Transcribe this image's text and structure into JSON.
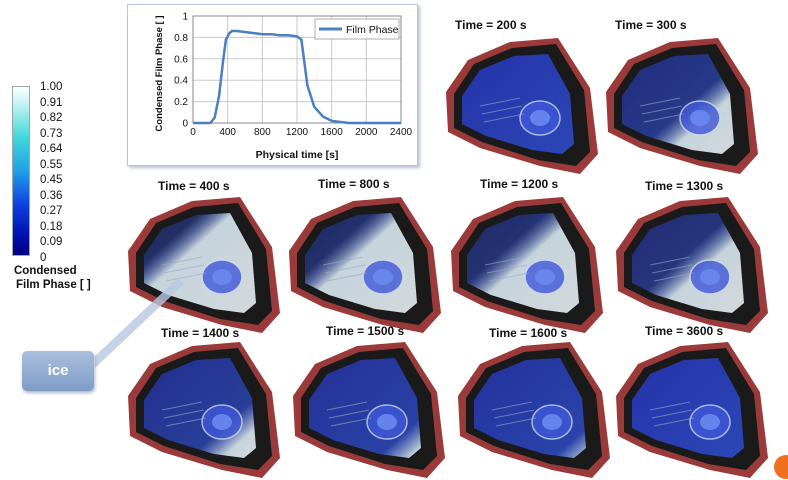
{
  "colorbar": {
    "ticks": [
      "1.00",
      "0.91",
      "0.82",
      "0.73",
      "0.64",
      "0.55",
      "0.45",
      "0.36",
      "0.27",
      "0.18",
      "0.09",
      "0"
    ],
    "title_line1": "Condensed",
    "title_line2": "Film Phase [ ]"
  },
  "chart_data": {
    "type": "line",
    "xlabel": "Physical time [s]",
    "ylabel": "Condensed Film Phase [ ]",
    "xlim": [
      0,
      2400
    ],
    "ylim": [
      0,
      1
    ],
    "xticks": [
      "0",
      "400",
      "800",
      "1200",
      "1600",
      "2000",
      "2400"
    ],
    "yticks": [
      "0",
      "0.2",
      "0.4",
      "0.6",
      "0.8",
      "1"
    ],
    "legend": "top-right",
    "grid": true,
    "series": [
      {
        "name": "Film Phase",
        "color": "#4a7fc0",
        "x": [
          0,
          200,
          250,
          300,
          350,
          380,
          420,
          450,
          500,
          600,
          700,
          800,
          900,
          1000,
          1100,
          1200,
          1250,
          1280,
          1320,
          1400,
          1500,
          1600,
          1700,
          1800,
          2000,
          2400
        ],
        "y": [
          0,
          0,
          0.05,
          0.25,
          0.6,
          0.78,
          0.84,
          0.86,
          0.86,
          0.85,
          0.84,
          0.83,
          0.83,
          0.82,
          0.82,
          0.81,
          0.78,
          0.6,
          0.35,
          0.15,
          0.06,
          0.02,
          0.01,
          0,
          0,
          0
        ]
      }
    ]
  },
  "frames": [
    {
      "label": "Time = 200 s"
    },
    {
      "label": "Time = 300 s"
    },
    {
      "label": "Time = 400 s"
    },
    {
      "label": "Time = 800 s"
    },
    {
      "label": "Time = 1200 s"
    },
    {
      "label": "Time = 1300 s"
    },
    {
      "label": "Time = 1400 s"
    },
    {
      "label": "Time = 1500 s"
    },
    {
      "label": "Time = 1600 s"
    },
    {
      "label": "Time = 3600 s"
    }
  ],
  "callout": {
    "label": "ice"
  }
}
